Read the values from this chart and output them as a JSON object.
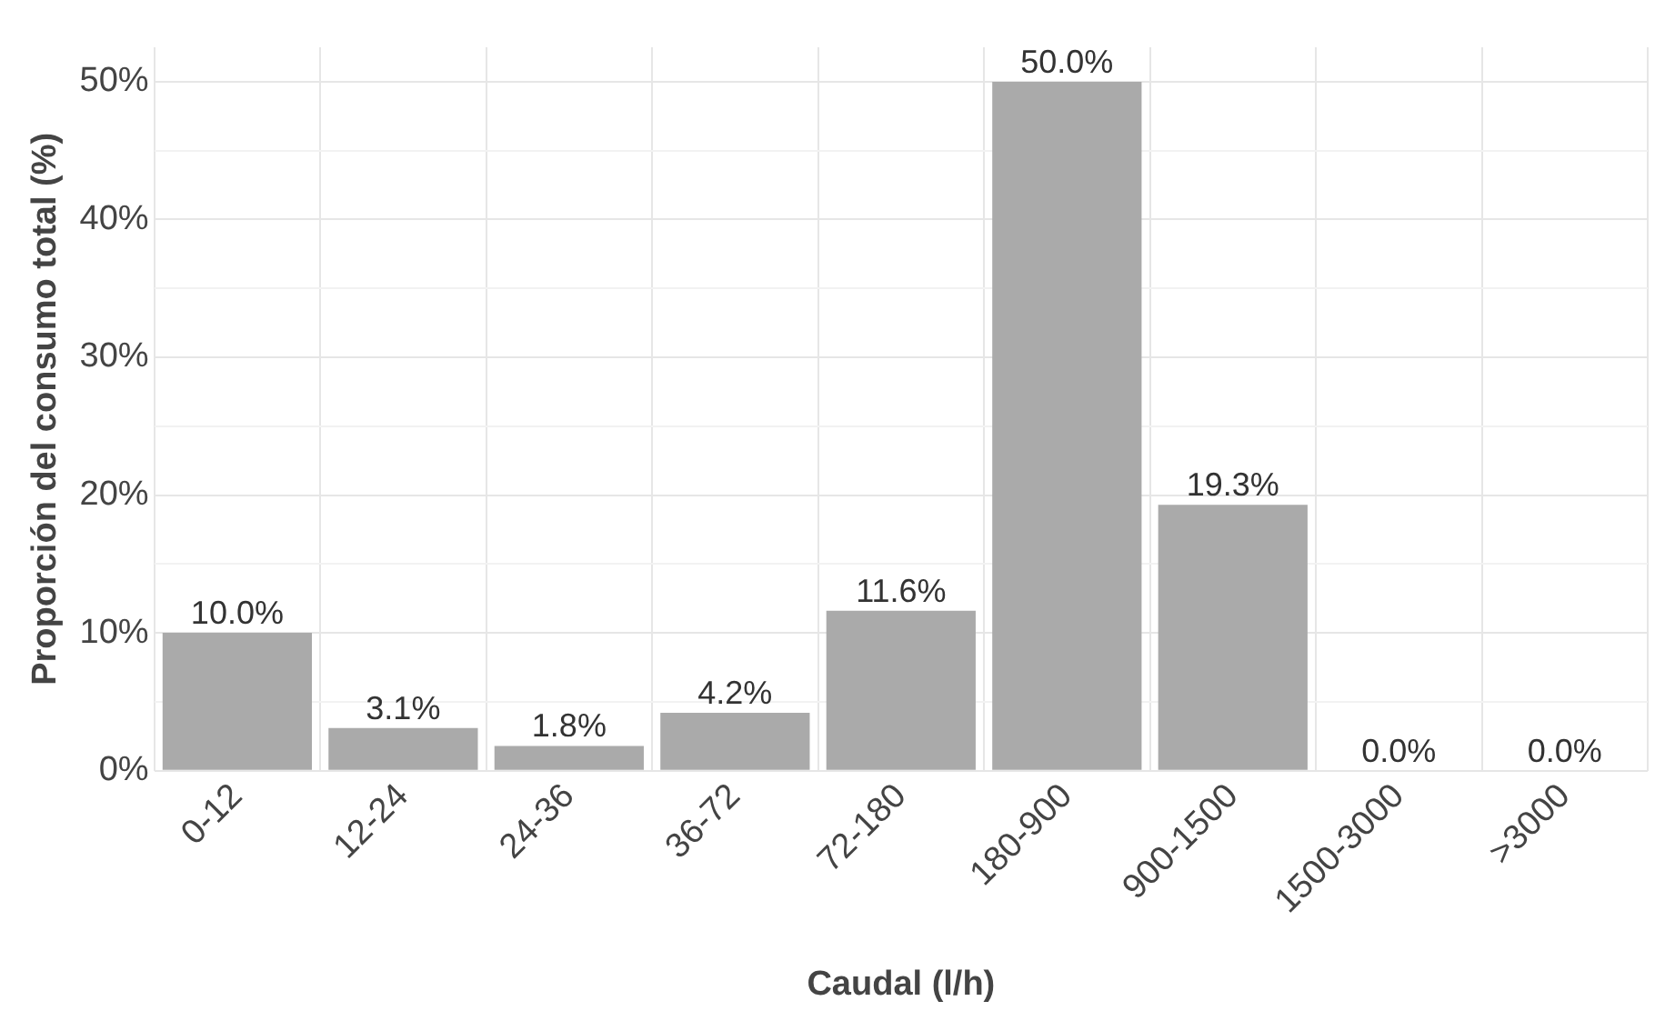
{
  "chart_data": {
    "type": "bar",
    "xlabel": "Caudal (l/h)",
    "ylabel": "Proporción del consumo total (%)",
    "categories": [
      "0-12",
      "12-24",
      "24-36",
      "36-72",
      "72-180",
      "180-900",
      "900-1500",
      "1500-3000",
      ">3000"
    ],
    "values": [
      10.0,
      3.1,
      1.8,
      4.2,
      11.6,
      50.0,
      19.3,
      0.0,
      0.0
    ],
    "value_labels": [
      "10.0%",
      "3.1%",
      "1.8%",
      "4.2%",
      "11.6%",
      "50.0%",
      "19.3%",
      "0.0%",
      "0.0%"
    ],
    "color": "#aaaaaa",
    "ylim": [
      0,
      52.5
    ],
    "yticks": [
      {
        "value": 0,
        "label": "0%"
      },
      {
        "value": 5,
        "label": null
      },
      {
        "value": 10,
        "label": "10%"
      },
      {
        "value": 15,
        "label": null
      },
      {
        "value": 20,
        "label": "20%"
      },
      {
        "value": 25,
        "label": null
      },
      {
        "value": 30,
        "label": "30%"
      },
      {
        "value": 35,
        "label": null
      },
      {
        "value": 40,
        "label": "40%"
      },
      {
        "value": 45,
        "label": null
      },
      {
        "value": 50,
        "label": "50%"
      }
    ],
    "grid": true,
    "legend": false
  }
}
